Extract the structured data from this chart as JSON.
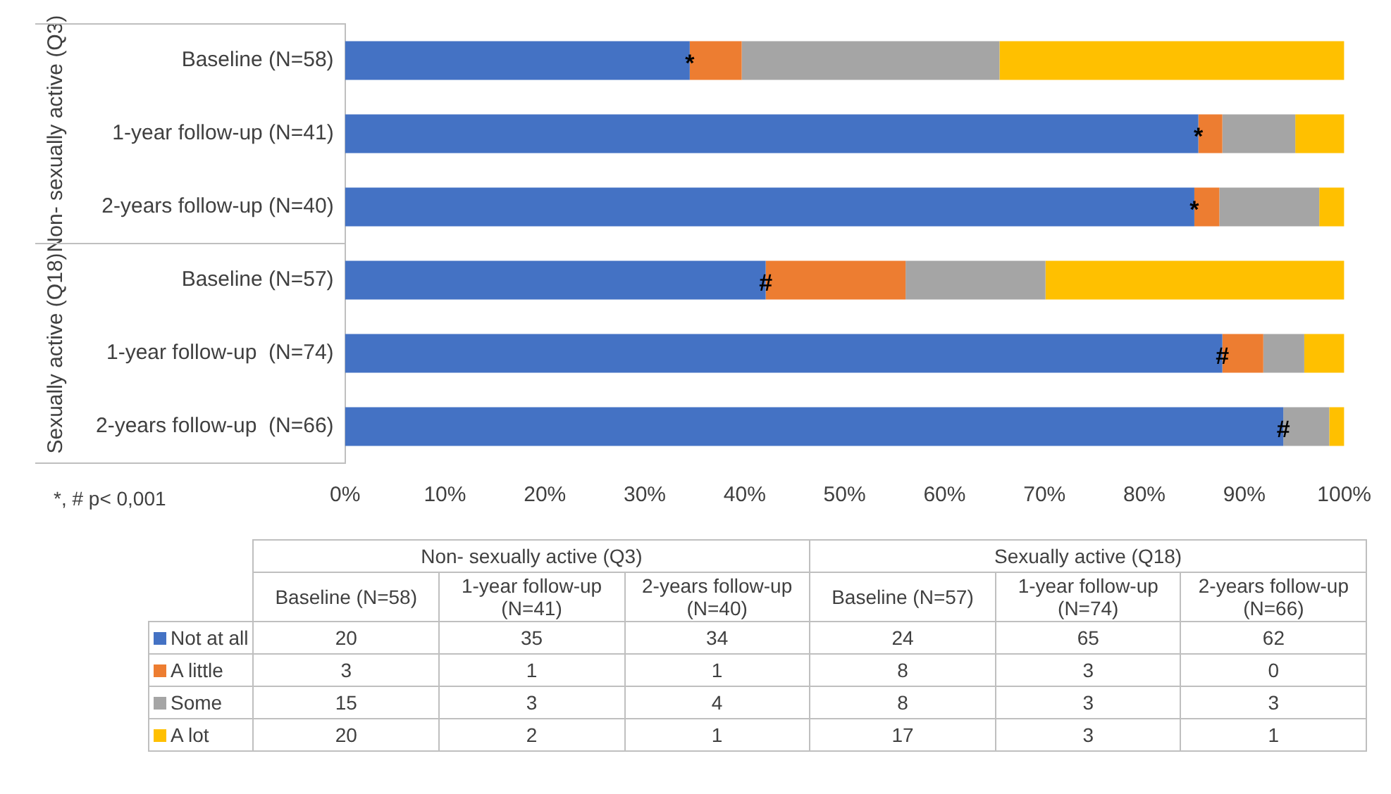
{
  "chart_data": [
    {
      "type": "bar",
      "orientation": "horizontal",
      "stacked": true,
      "categories": [
        "Baseline (N=58)",
        "1-year follow-up (N=41)",
        "2-years follow-up (N=40)",
        "Baseline (N=57)",
        "1-year follow-up  (N=74)",
        "2-years follow-up  (N=66)"
      ],
      "series": [
        {
          "color": "#4472c4",
          "values": [
            34.5,
            85.4,
            85,
            42.1,
            87.8,
            93.9
          ]
        },
        {
          "color": "#ed7d31",
          "values": [
            5.2,
            2.4,
            2.5,
            14.0,
            4.1,
            0
          ]
        },
        {
          "color": "#a5a5a5",
          "values": [
            25.8,
            7.3,
            10,
            14.0,
            4.1,
            4.6
          ]
        },
        {
          "color": "#ffc000",
          "values": [
            34.5,
            4.9,
            2.5,
            29.9,
            4.0,
            1.5
          ]
        }
      ],
      "xlim": [
        0,
        100
      ],
      "xticks": [
        {
          "value": 0,
          "label": "0%"
        },
        {
          "value": 10,
          "label": "10%"
        },
        {
          "value": 20,
          "label": "20%"
        },
        {
          "value": 30,
          "label": "30%"
        },
        {
          "value": 40,
          "label": "40%"
        },
        {
          "value": 50,
          "label": "50%"
        },
        {
          "value": 60,
          "label": "60%"
        },
        {
          "value": 70,
          "label": "70%"
        },
        {
          "value": 80,
          "label": "80%"
        },
        {
          "value": 90,
          "label": "90%"
        },
        {
          "value": 100,
          "label": "100%"
        }
      ],
      "grid": false,
      "annotations": [
        "Non- sexually active (Q3)",
        "Sexually active (Q18)",
        "*, # p< 0,001",
        {
          "text": "*",
          "x": 34.5,
          "y": "Baseline (N=58)"
        },
        {
          "text": "*",
          "x": 85.4,
          "y": "1-year follow-up (N=41)"
        },
        {
          "text": "*",
          "x": 85,
          "y": "2-years follow-up (N=40)"
        },
        {
          "text": "#",
          "x": 42.1,
          "y": "Baseline (N=57)"
        },
        {
          "text": "#",
          "x": 87.8,
          "y": "1-year follow-up  (N=74)"
        },
        {
          "text": "#",
          "x": 93.9,
          "y": "2-years follow-up  (N=66)"
        }
      ]
    },
    {
      "type": "other",
      "categories": [
        "Baseline (N=58)",
        "1-year follow-up (N=41)",
        "2-years follow-up (N=40)",
        "Baseline (N=57)",
        "1-year follow-up (N=74)",
        "2-years follow-up (N=66)"
      ],
      "series": [
        {
          "name": "Not at all",
          "color": "#4472c4",
          "values": [
            20,
            35,
            34,
            24,
            65,
            62
          ]
        },
        {
          "name": "A little",
          "color": "#ed7d31",
          "values": [
            3,
            1,
            1,
            8,
            3,
            0
          ]
        },
        {
          "name": "Some",
          "color": "#a5a5a5",
          "values": [
            15,
            3,
            4,
            8,
            3,
            3
          ]
        },
        {
          "name": "A lot",
          "color": "#ffc000",
          "values": [
            20,
            2,
            1,
            17,
            3,
            1
          ]
        }
      ],
      "data_labels": true,
      "annotations": [
        "Non- sexually active (Q3)",
        "Sexually active (Q18)"
      ]
    }
  ]
}
